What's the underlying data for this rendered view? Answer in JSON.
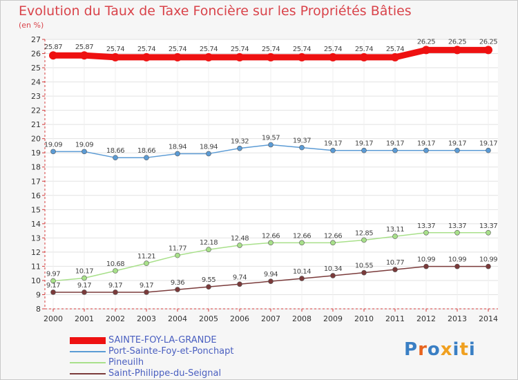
{
  "page": {
    "title": "Evolution du Taux de Taxe Foncière sur les Propriétés Bâties",
    "unit": "(en %)",
    "brand": "Proxiti"
  },
  "chart_data": {
    "type": "line",
    "title": "Evolution du Taux de Taxe Foncière sur les Propriétés Bâties",
    "ylabel": "(en %)",
    "xlabel": "",
    "ylim": [
      8,
      27
    ],
    "yticks": [
      8,
      9,
      10,
      11,
      12,
      13,
      14,
      15,
      16,
      17,
      18,
      19,
      20,
      21,
      22,
      23,
      24,
      25,
      26,
      27
    ],
    "categories": [
      "2000",
      "2001",
      "2002",
      "2003",
      "2004",
      "2005",
      "2006",
      "2007",
      "2008",
      "2009",
      "2010",
      "2011",
      "2012",
      "2013",
      "2014"
    ],
    "legend_position": "bottom-left",
    "series": [
      {
        "name": "SAINTE-FOY-LA-GRANDE",
        "color": "#ee1111",
        "values": [
          25.87,
          25.87,
          25.74,
          25.74,
          25.74,
          25.74,
          25.74,
          25.74,
          25.74,
          25.74,
          25.74,
          25.74,
          26.25,
          26.25,
          26.25
        ],
        "labels": [
          "25.87",
          "25.87",
          "25.74",
          "25.74",
          "25.74",
          "25.74",
          "25.74",
          "25.74",
          "25.74",
          "25.74",
          "25.74",
          "25.74",
          "26.25",
          "26.25",
          "26.25"
        ]
      },
      {
        "name": "Port-Sainte-Foy-et-Ponchapt",
        "color": "#5b9bd5",
        "values": [
          19.09,
          19.09,
          18.66,
          18.66,
          18.94,
          18.94,
          19.32,
          19.57,
          19.37,
          19.17,
          19.17,
          19.17,
          19.17,
          19.17,
          19.17
        ],
        "labels": [
          "19.09",
          "19.09",
          "18.66",
          "18.66",
          "18.94",
          "18.94",
          "19.32",
          "19.57",
          "19.37",
          "19.17",
          "19.17",
          "19.17",
          "19.17",
          "19.17",
          "19.17"
        ]
      },
      {
        "name": "Pineuilh",
        "color": "#a8e08a",
        "values": [
          9.97,
          10.17,
          10.68,
          11.21,
          11.77,
          12.18,
          12.48,
          12.66,
          12.66,
          12.66,
          12.85,
          13.11,
          13.37,
          13.37,
          13.37
        ],
        "labels": [
          "9.97",
          "10.17",
          "10.68",
          "11.21",
          "11.77",
          "12.18",
          "12.48",
          "12.66",
          "12.66",
          "12.66",
          "12.85",
          "13.11",
          "13.37",
          "13.37",
          "13.37"
        ]
      },
      {
        "name": "Saint-Philippe-du-Seignal",
        "color": "#7a3a3a",
        "values": [
          9.17,
          9.17,
          9.17,
          9.17,
          9.36,
          9.55,
          9.74,
          9.94,
          10.14,
          10.34,
          10.55,
          10.77,
          10.99,
          10.99,
          10.99
        ],
        "labels": [
          "9.17",
          "9.17",
          "9.17",
          "9.17",
          "9.36",
          "9.55",
          "9.74",
          "9.94",
          "10.14",
          "10.34",
          "10.55",
          "10.77",
          "10.99",
          "10.99",
          "10.99"
        ]
      }
    ]
  }
}
